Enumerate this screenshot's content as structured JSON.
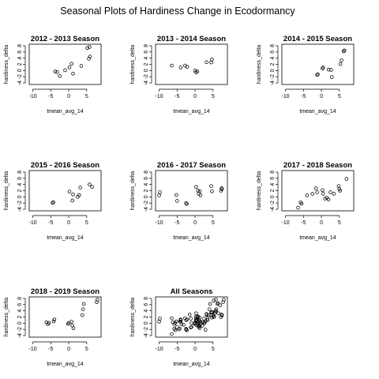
{
  "figure_title": "Seasonal Plots of Hardiness Change in Ecodormancy",
  "chart_data": [
    {
      "type": "scatter",
      "title": "2012 - 2013 Season",
      "xlabel": "tmean_avg_14",
      "ylabel": "hardiness_delta",
      "xticks": [
        -10,
        -5,
        0,
        5
      ],
      "yticks": [
        -4,
        -2,
        0,
        2,
        4,
        6,
        8
      ],
      "xlim": [
        -11,
        9
      ],
      "ylim": [
        -4.5,
        8.5
      ],
      "x": [
        -3.8,
        -3.2,
        -2.5,
        -1.0,
        0.2,
        0.8,
        1.2,
        3.5,
        5.2,
        5.8,
        5.6,
        5.9
      ],
      "y": [
        -0.3,
        -0.5,
        -1.8,
        0.1,
        1.0,
        2.2,
        -1.0,
        1.5,
        7.3,
        7.6,
        3.8,
        4.5
      ]
    },
    {
      "type": "scatter",
      "title": "2013 - 2014 Season",
      "xlabel": "tmean_avg_14",
      "ylabel": "hardiness_delta",
      "xticks": [
        -10,
        -5,
        0,
        5
      ],
      "yticks": [
        -4,
        -2,
        0,
        2,
        4,
        6,
        8
      ],
      "xlim": [
        -11,
        9
      ],
      "ylim": [
        -4.5,
        8.5
      ],
      "x": [
        -6.5,
        -4.0,
        -2.8,
        -2.2,
        0.0,
        0.3,
        0.6,
        3.2,
        4.5,
        4.7
      ],
      "y": [
        1.6,
        1.0,
        1.6,
        1.2,
        0.0,
        -0.6,
        -0.3,
        2.7,
        2.6,
        3.6
      ]
    },
    {
      "type": "scatter",
      "title": "2014 - 2015 Season",
      "xlabel": "tmean_avg_14",
      "ylabel": "hardiness_delta",
      "xticks": [
        -10,
        -5,
        0,
        5
      ],
      "yticks": [
        -4,
        -2,
        0,
        2,
        4,
        6,
        8
      ],
      "xlim": [
        -11,
        9
      ],
      "ylim": [
        -4.5,
        8.5
      ],
      "x": [
        -1.2,
        -1.0,
        0.3,
        0.5,
        2.0,
        2.7,
        2.9,
        5.3,
        5.6,
        6.2,
        6.4
      ],
      "y": [
        -1.4,
        -1.2,
        0.7,
        1.0,
        0.3,
        0.2,
        -2.1,
        2.1,
        3.3,
        6.2,
        6.5
      ]
    },
    {
      "type": "scatter",
      "title": "2015 - 2016 Season",
      "xlabel": "tmean_avg_14",
      "ylabel": "hardiness_delta",
      "xticks": [
        -10,
        -5,
        0,
        5
      ],
      "yticks": [
        -4,
        -2,
        0,
        2,
        4,
        6,
        8
      ],
      "xlim": [
        -11,
        9
      ],
      "ylim": [
        -4.5,
        8.5
      ],
      "x": [
        -4.5,
        -4.3,
        0.2,
        1.0,
        1.2,
        2.5,
        2.9,
        3.2,
        5.8,
        6.5
      ],
      "y": [
        -2.0,
        -1.7,
        1.7,
        -1.2,
        0.8,
        0.0,
        0.6,
        3.0,
        4.0,
        3.2
      ]
    },
    {
      "type": "scatter",
      "title": "2016 - 2017 Season",
      "xlabel": "tmean_avg_14",
      "ylabel": "hardiness_delta",
      "xticks": [
        -10,
        -5,
        0,
        5
      ],
      "yticks": [
        -4,
        -2,
        0,
        2,
        4,
        6,
        8
      ],
      "xlim": [
        -11,
        9
      ],
      "ylim": [
        -4.5,
        8.5
      ],
      "x": [
        -10.0,
        -9.8,
        -5.2,
        -5.0,
        -2.5,
        -2.3,
        0.3,
        0.8,
        1.0,
        1.3,
        1.5,
        4.5,
        4.7,
        7.2,
        7.4,
        7.5
      ],
      "y": [
        0.5,
        1.5,
        0.6,
        -1.3,
        -2.0,
        -2.3,
        3.2,
        2.0,
        1.0,
        1.8,
        0.5,
        3.5,
        1.8,
        2.0,
        2.8,
        2.5
      ]
    },
    {
      "type": "scatter",
      "title": "2017 - 2018 Season",
      "xlabel": "tmean_avg_14",
      "ylabel": "hardiness_delta",
      "xticks": [
        -10,
        -5,
        0,
        5
      ],
      "yticks": [
        -4,
        -2,
        0,
        2,
        4,
        6,
        8
      ],
      "xlim": [
        -11,
        9
      ],
      "ylim": [
        -4.5,
        8.5
      ],
      "x": [
        -6.5,
        -5.8,
        -5.5,
        -4.0,
        -2.5,
        -1.5,
        -1.2,
        0.3,
        0.5,
        1.0,
        1.5,
        2.0,
        2.5,
        3.5,
        4.8,
        5.0,
        5.2,
        7.0
      ],
      "y": [
        -3.5,
        -1.8,
        -2.2,
        0.5,
        1.0,
        2.8,
        1.5,
        2.2,
        1.0,
        -0.6,
        -0.3,
        -0.8,
        1.5,
        1.0,
        3.5,
        2.5,
        2.0,
        5.8
      ]
    },
    {
      "type": "scatter",
      "title": "2018 - 2019 Season",
      "xlabel": "tmean_avg_14",
      "ylabel": "hardiness_delta",
      "xticks": [
        -10,
        -5,
        0,
        5
      ],
      "yticks": [
        -4,
        -2,
        0,
        2,
        4,
        6,
        8
      ],
      "xlim": [
        -11,
        9
      ],
      "ylim": [
        -4.5,
        8.5
      ],
      "x": [
        -6.2,
        -5.8,
        -5.5,
        -4.2,
        -4.0,
        -0.2,
        0.0,
        0.8,
        1.0,
        1.3,
        3.8,
        4.0,
        4.2,
        7.8,
        8.0
      ],
      "y": [
        0.3,
        -0.3,
        0.1,
        0.6,
        1.2,
        -0.2,
        0.1,
        0.5,
        -0.7,
        -1.6,
        2.6,
        4.5,
        6.2,
        6.8,
        7.6
      ]
    },
    {
      "type": "scatter",
      "title": "All Seasons",
      "xlabel": "tmean_avg_14",
      "ylabel": "hardiness_delta",
      "xticks": [
        -10,
        -5,
        0,
        5
      ],
      "yticks": [
        -4,
        -2,
        0,
        2,
        4,
        6,
        8
      ],
      "xlim": [
        -11,
        9
      ],
      "ylim": [
        -4.5,
        8.5
      ],
      "x": [
        -3.8,
        -3.2,
        -2.5,
        -1.0,
        0.2,
        0.8,
        1.2,
        3.5,
        5.2,
        5.8,
        5.6,
        5.9,
        -6.5,
        -4.0,
        -2.8,
        -2.2,
        0.0,
        0.3,
        0.6,
        3.2,
        4.5,
        4.7,
        -1.2,
        -1.0,
        0.3,
        0.5,
        2.0,
        2.7,
        2.9,
        5.3,
        5.6,
        6.2,
        6.4,
        -4.5,
        -4.3,
        0.2,
        1.0,
        1.2,
        2.5,
        2.9,
        3.2,
        5.8,
        6.5,
        -10.0,
        -9.8,
        -5.2,
        -5.0,
        -2.5,
        -2.3,
        0.3,
        0.8,
        1.0,
        1.3,
        1.5,
        4.5,
        4.7,
        7.2,
        7.4,
        7.5,
        -6.5,
        -5.8,
        -5.5,
        -4.0,
        -2.5,
        -1.5,
        -1.2,
        0.3,
        0.5,
        1.0,
        1.5,
        2.0,
        2.5,
        3.5,
        4.8,
        5.0,
        5.2,
        7.0,
        -6.2,
        -5.8,
        -5.5,
        -4.2,
        -4.0,
        -0.2,
        0.0,
        0.8,
        1.0,
        1.3,
        3.8,
        4.0,
        4.2,
        7.8,
        8.0
      ],
      "y": [
        -0.3,
        -0.5,
        -1.8,
        0.1,
        1.0,
        2.2,
        -1.0,
        1.5,
        7.3,
        7.6,
        3.8,
        4.5,
        1.6,
        1.0,
        1.6,
        1.2,
        0.0,
        -0.6,
        -0.3,
        2.7,
        2.6,
        3.6,
        -1.4,
        -1.2,
        0.7,
        1.0,
        0.3,
        0.2,
        -2.1,
        2.1,
        3.3,
        6.2,
        6.5,
        -2.0,
        -1.7,
        1.7,
        -1.2,
        0.8,
        0.0,
        0.6,
        3.0,
        4.0,
        3.2,
        0.5,
        1.5,
        0.6,
        -1.3,
        -2.0,
        -2.3,
        3.2,
        2.0,
        1.0,
        1.8,
        0.5,
        3.5,
        1.8,
        2.0,
        2.8,
        2.5,
        -3.5,
        -1.8,
        -2.2,
        0.5,
        1.0,
        2.8,
        1.5,
        2.2,
        1.0,
        -0.6,
        -0.3,
        -0.8,
        1.5,
        1.0,
        3.5,
        2.5,
        2.0,
        5.8,
        0.3,
        -0.3,
        0.1,
        0.6,
        1.2,
        -0.2,
        0.1,
        0.5,
        -0.7,
        -1.6,
        2.6,
        4.5,
        6.2,
        6.8,
        7.6
      ]
    }
  ]
}
